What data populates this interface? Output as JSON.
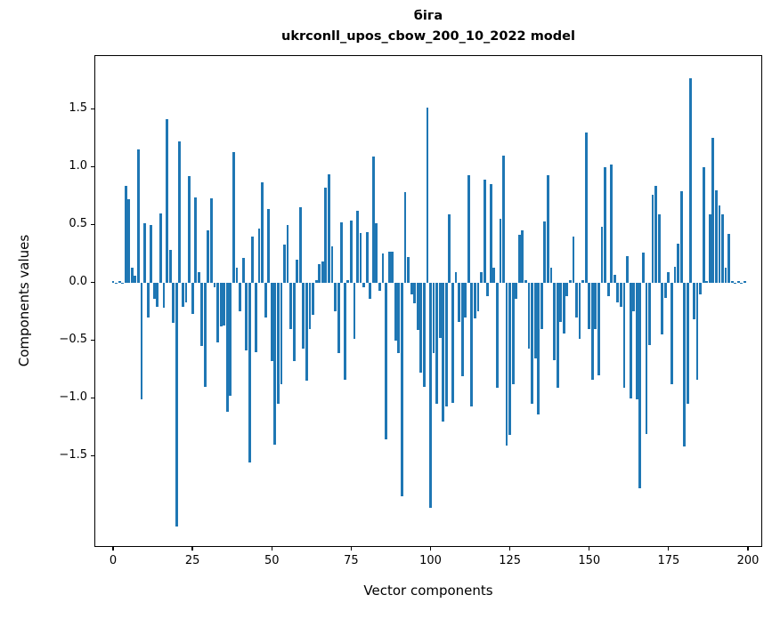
{
  "figure": {
    "title": "біга",
    "subtitle": "ukrconll_upos_cbow_200_10_2022 model",
    "xlabel": "Vector components",
    "ylabel": "Components values"
  },
  "chart_data": {
    "type": "bar",
    "title": "біга",
    "subtitle": "ukrconll_upos_cbow_200_10_2022 model",
    "xlabel": "Vector components",
    "ylabel": "Components values",
    "bar_color": "#1f77b4",
    "background_color": "#ffffff",
    "grid": false,
    "legend": null,
    "xlim": [
      -5.6,
      204.2
    ],
    "ylim": [
      -2.28,
      1.96
    ],
    "bar_width_data_units": 0.8,
    "x_ticks": [
      {
        "v": 0,
        "label": "0"
      },
      {
        "v": 25,
        "label": "25"
      },
      {
        "v": 50,
        "label": "50"
      },
      {
        "v": 75,
        "label": "75"
      },
      {
        "v": 100,
        "label": "100"
      },
      {
        "v": 125,
        "label": "125"
      },
      {
        "v": 150,
        "label": "150"
      },
      {
        "v": 175,
        "label": "175"
      },
      {
        "v": 200,
        "label": "200"
      }
    ],
    "y_ticks": [
      {
        "v": 1.5,
        "label": "1.5"
      },
      {
        "v": 1.0,
        "label": "1.0"
      },
      {
        "v": 0.5,
        "label": "0.5"
      },
      {
        "v": 0.0,
        "label": "0.0"
      },
      {
        "v": -0.5,
        "label": "−0.5"
      },
      {
        "v": -1.0,
        "label": "−1.0"
      },
      {
        "v": -1.5,
        "label": "−1.5"
      }
    ],
    "values": [
      0.01,
      -0.01,
      0.01,
      -0.01,
      0.84,
      0.72,
      0.13,
      0.06,
      1.15,
      -1.01,
      0.51,
      -0.3,
      0.5,
      -0.14,
      -0.21,
      0.6,
      -0.22,
      1.41,
      0.28,
      -0.35,
      -2.11,
      1.22,
      -0.21,
      -0.17,
      0.92,
      -0.27,
      0.74,
      0.09,
      -0.55,
      -0.9,
      0.45,
      0.73,
      -0.04,
      -0.52,
      -0.38,
      -0.37,
      -1.12,
      -0.98,
      1.13,
      0.13,
      -0.25,
      0.21,
      -0.59,
      -1.56,
      0.4,
      -0.6,
      0.47,
      0.87,
      -0.3,
      0.64,
      -0.68,
      -1.4,
      -1.05,
      -0.88,
      0.33,
      0.5,
      -0.4,
      -0.68,
      0.2,
      0.65,
      -0.57,
      -0.85,
      -0.4,
      -0.28,
      0.02,
      0.16,
      0.18,
      0.82,
      0.94,
      0.31,
      -0.25,
      -0.61,
      0.52,
      -0.84,
      0.02,
      0.54,
      -0.49,
      0.62,
      0.43,
      -0.04,
      0.44,
      -0.14,
      1.09,
      0.51,
      -0.07,
      0.25,
      -1.36,
      0.27,
      0.27,
      -0.5,
      -0.61,
      -1.85,
      0.78,
      0.22,
      -0.1,
      -0.18,
      -0.41,
      -0.78,
      -0.9,
      1.51,
      -1.95,
      -0.61,
      -1.05,
      -0.48,
      -1.2,
      -1.07,
      0.59,
      -1.04,
      0.09,
      -0.34,
      -0.81,
      -0.3,
      0.93,
      -1.07,
      -0.31,
      -0.25,
      0.09,
      0.89,
      -0.12,
      0.85,
      0.13,
      -0.91,
      0.55,
      1.1,
      -1.41,
      -1.32,
      -0.88,
      -0.14,
      0.41,
      0.45,
      0.02,
      -0.57,
      -1.05,
      -0.66,
      -1.14,
      -0.4,
      0.53,
      0.93,
      0.13,
      -0.67,
      -0.91,
      -0.34,
      -0.44,
      -0.12,
      0.02,
      0.4,
      -0.3,
      -0.49,
      0.02,
      1.3,
      -0.4,
      -0.84,
      -0.4,
      -0.8,
      0.48,
      1.0,
      -0.12,
      1.02,
      0.07,
      -0.17,
      -0.21,
      -0.91,
      0.23,
      -1.0,
      -0.25,
      -1.01,
      -1.78,
      0.26,
      -1.31,
      -0.54,
      0.76,
      0.84,
      0.59,
      -0.45,
      -0.13,
      0.09,
      -0.88,
      0.14,
      0.34,
      0.79,
      -1.42,
      -1.05,
      1.77,
      -0.32,
      -0.84,
      -0.1,
      1.0,
      0.01,
      0.59,
      1.25,
      0.8,
      0.67,
      0.59,
      0.13,
      0.42,
      0.01,
      -0.01,
      0.01,
      -0.01,
      0.01
    ]
  }
}
